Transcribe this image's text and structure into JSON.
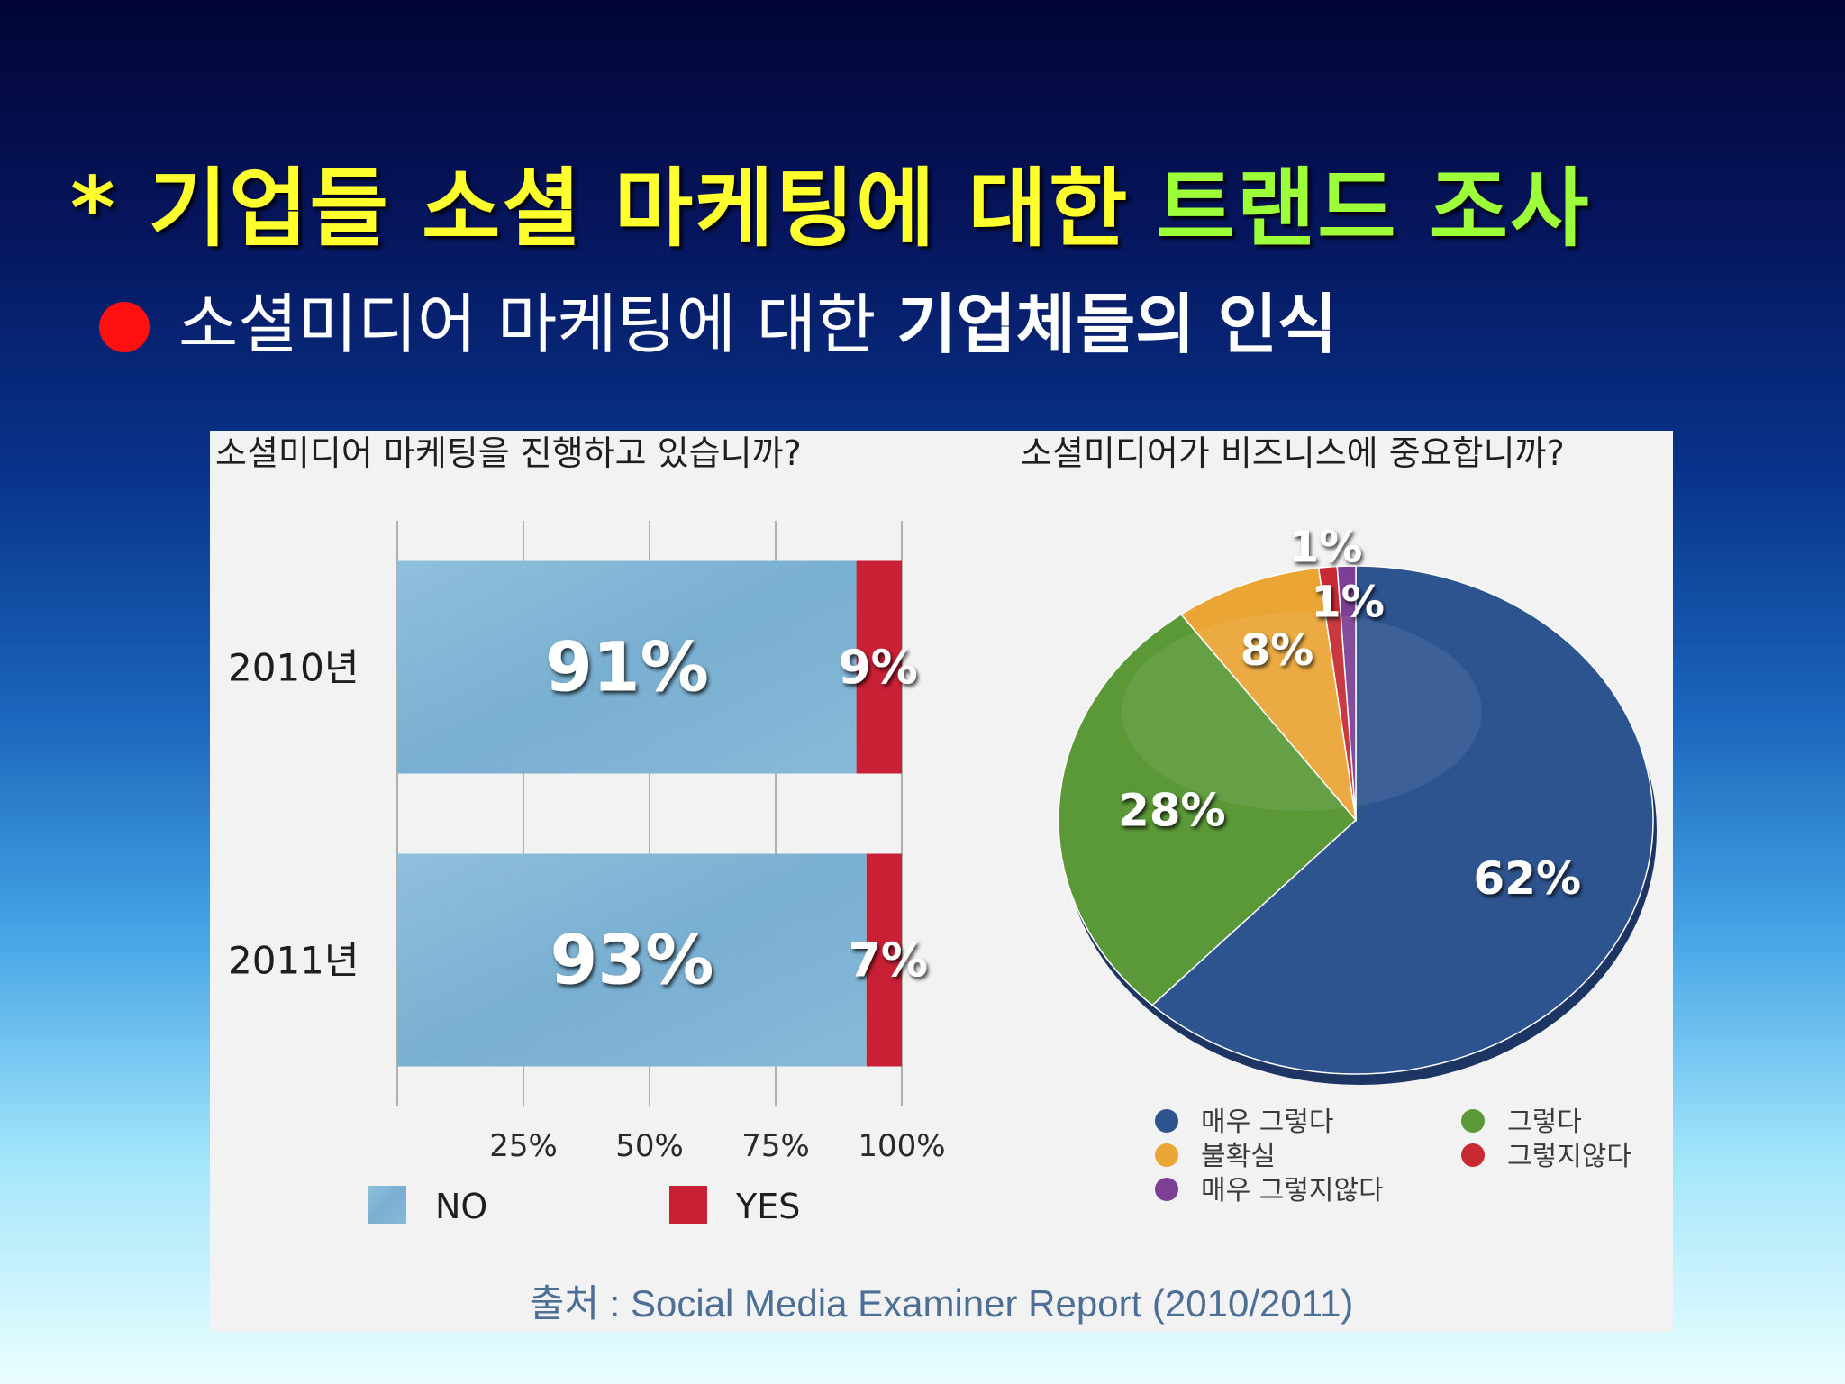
{
  "title": {
    "part_yellow": "* 기업들 소셜 마케팅에 대한",
    "part_green": "트랜드 조사"
  },
  "subtitle": {
    "part_regular": "소셜미디어 마케팅에 대한",
    "part_bold": "기업체들의 인식"
  },
  "colors": {
    "title_yellow": "#ffff2e",
    "title_green": "#9cff3a",
    "bullet_red": "#ff1010",
    "bar_no": "#7fb2d3",
    "bar_yes": "#c92035",
    "pie_very_agree": "#2e5490",
    "pie_agree": "#5b9938",
    "pie_unsure": "#eba534",
    "pie_disagree": "#c72a32",
    "pie_very_disagree": "#7c3f95"
  },
  "source": "출처 : Social Media Examiner Report (2010/2011)",
  "chart_data": [
    {
      "type": "bar",
      "orientation": "horizontal-stacked",
      "title": "소셜미디어 마케팅을 진행하고 있습니까?",
      "categories": [
        "2010년",
        "2011년"
      ],
      "series": [
        {
          "name": "NO",
          "values": [
            91,
            93
          ],
          "labels": [
            "91%",
            "93%"
          ]
        },
        {
          "name": "YES",
          "values": [
            9,
            7
          ],
          "labels": [
            "9%",
            "7%"
          ]
        }
      ],
      "xlim": [
        0,
        100
      ],
      "xticks": [
        {
          "value": 25,
          "label": "25%"
        },
        {
          "value": 50,
          "label": "50%"
        },
        {
          "value": 75,
          "label": "75%"
        },
        {
          "value": 100,
          "label": "100%"
        }
      ],
      "grid": true,
      "legend_position": "bottom"
    },
    {
      "type": "pie",
      "title": "소셜미디어가 비즈니스에 중요합니까?",
      "slices": [
        {
          "name": "매우 그렇다",
          "value": 62,
          "label": "62%"
        },
        {
          "name": "그렇다",
          "value": 28,
          "label": "28%"
        },
        {
          "name": "불확실",
          "value": 8,
          "label": "8%"
        },
        {
          "name": "그렇지않다",
          "value": 1,
          "label": "1%"
        },
        {
          "name": "매우 그렇지않다",
          "value": 1,
          "label": "1%"
        }
      ],
      "legend_position": "bottom"
    }
  ]
}
